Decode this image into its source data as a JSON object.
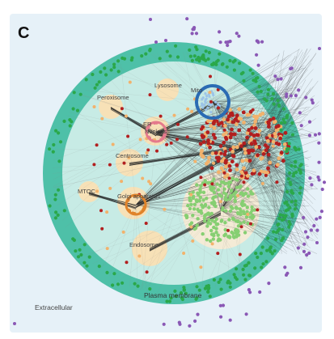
{
  "panel_label": "C",
  "regions": {
    "extracellular": "Extracellular",
    "plasma_membrane": "Plasma membrane"
  },
  "compartments": {
    "peroxisome": "Peroxisome",
    "lysosome": "Lysosome",
    "mito": "Mito",
    "er": "ER",
    "nucleus": "Nucleus",
    "centrosome": "Centrosome",
    "mtoc": "MTOC",
    "golgi": "Golgi apparatus",
    "endosome": "Endosome"
  },
  "colors": {
    "extracellular_bg": "#e6f1f8",
    "plasma_membrane": "#4ec0a8",
    "cytoplasm": "#c7ebe5",
    "compartment_fill": "#f7e1b7",
    "membrane_node": "#2aa84a",
    "extracellular_node": "#8a58b5",
    "cytosolic_node_dark": "#b21f1f",
    "cytosolic_node_light": "#f2b26c",
    "mito_cluster": "#2a6bb3",
    "nucleus_cluster": "#86cf72",
    "golgi_cluster": "#e0832a",
    "er_cluster": "#e47a8c",
    "edge": "#222222"
  }
}
